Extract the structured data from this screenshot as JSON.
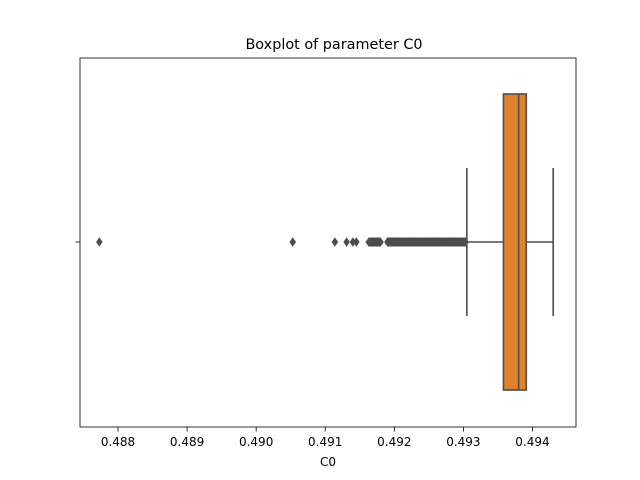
{
  "chart_data": {
    "type": "boxplot",
    "title": "Boxplot of parameter C0",
    "xlabel": "C0",
    "ylabel": "",
    "orientation": "horizontal",
    "xlim": [
      0.48745,
      0.49463
    ],
    "x_ticks": [
      {
        "value": 0.488,
        "label": "0.488"
      },
      {
        "value": 0.489,
        "label": "0.489"
      },
      {
        "value": 0.49,
        "label": "0.490"
      },
      {
        "value": 0.491,
        "label": "0.491"
      },
      {
        "value": 0.492,
        "label": "0.492"
      },
      {
        "value": 0.493,
        "label": "0.493"
      },
      {
        "value": 0.494,
        "label": "0.494"
      }
    ],
    "grid": false,
    "box": {
      "whisker_low": 0.49305,
      "q1": 0.49358,
      "median": 0.4938,
      "q3": 0.49391,
      "whisker_high": 0.4943,
      "color": "#e1812c",
      "line_color": "#4d4d4d"
    },
    "outliers": [
      0.48773,
      0.49053,
      0.49114,
      0.49131,
      0.4914,
      0.49145
    ],
    "outlier_ranges": [
      [
        0.49163,
        0.4918
      ],
      [
        0.4919,
        0.49303
      ]
    ]
  }
}
